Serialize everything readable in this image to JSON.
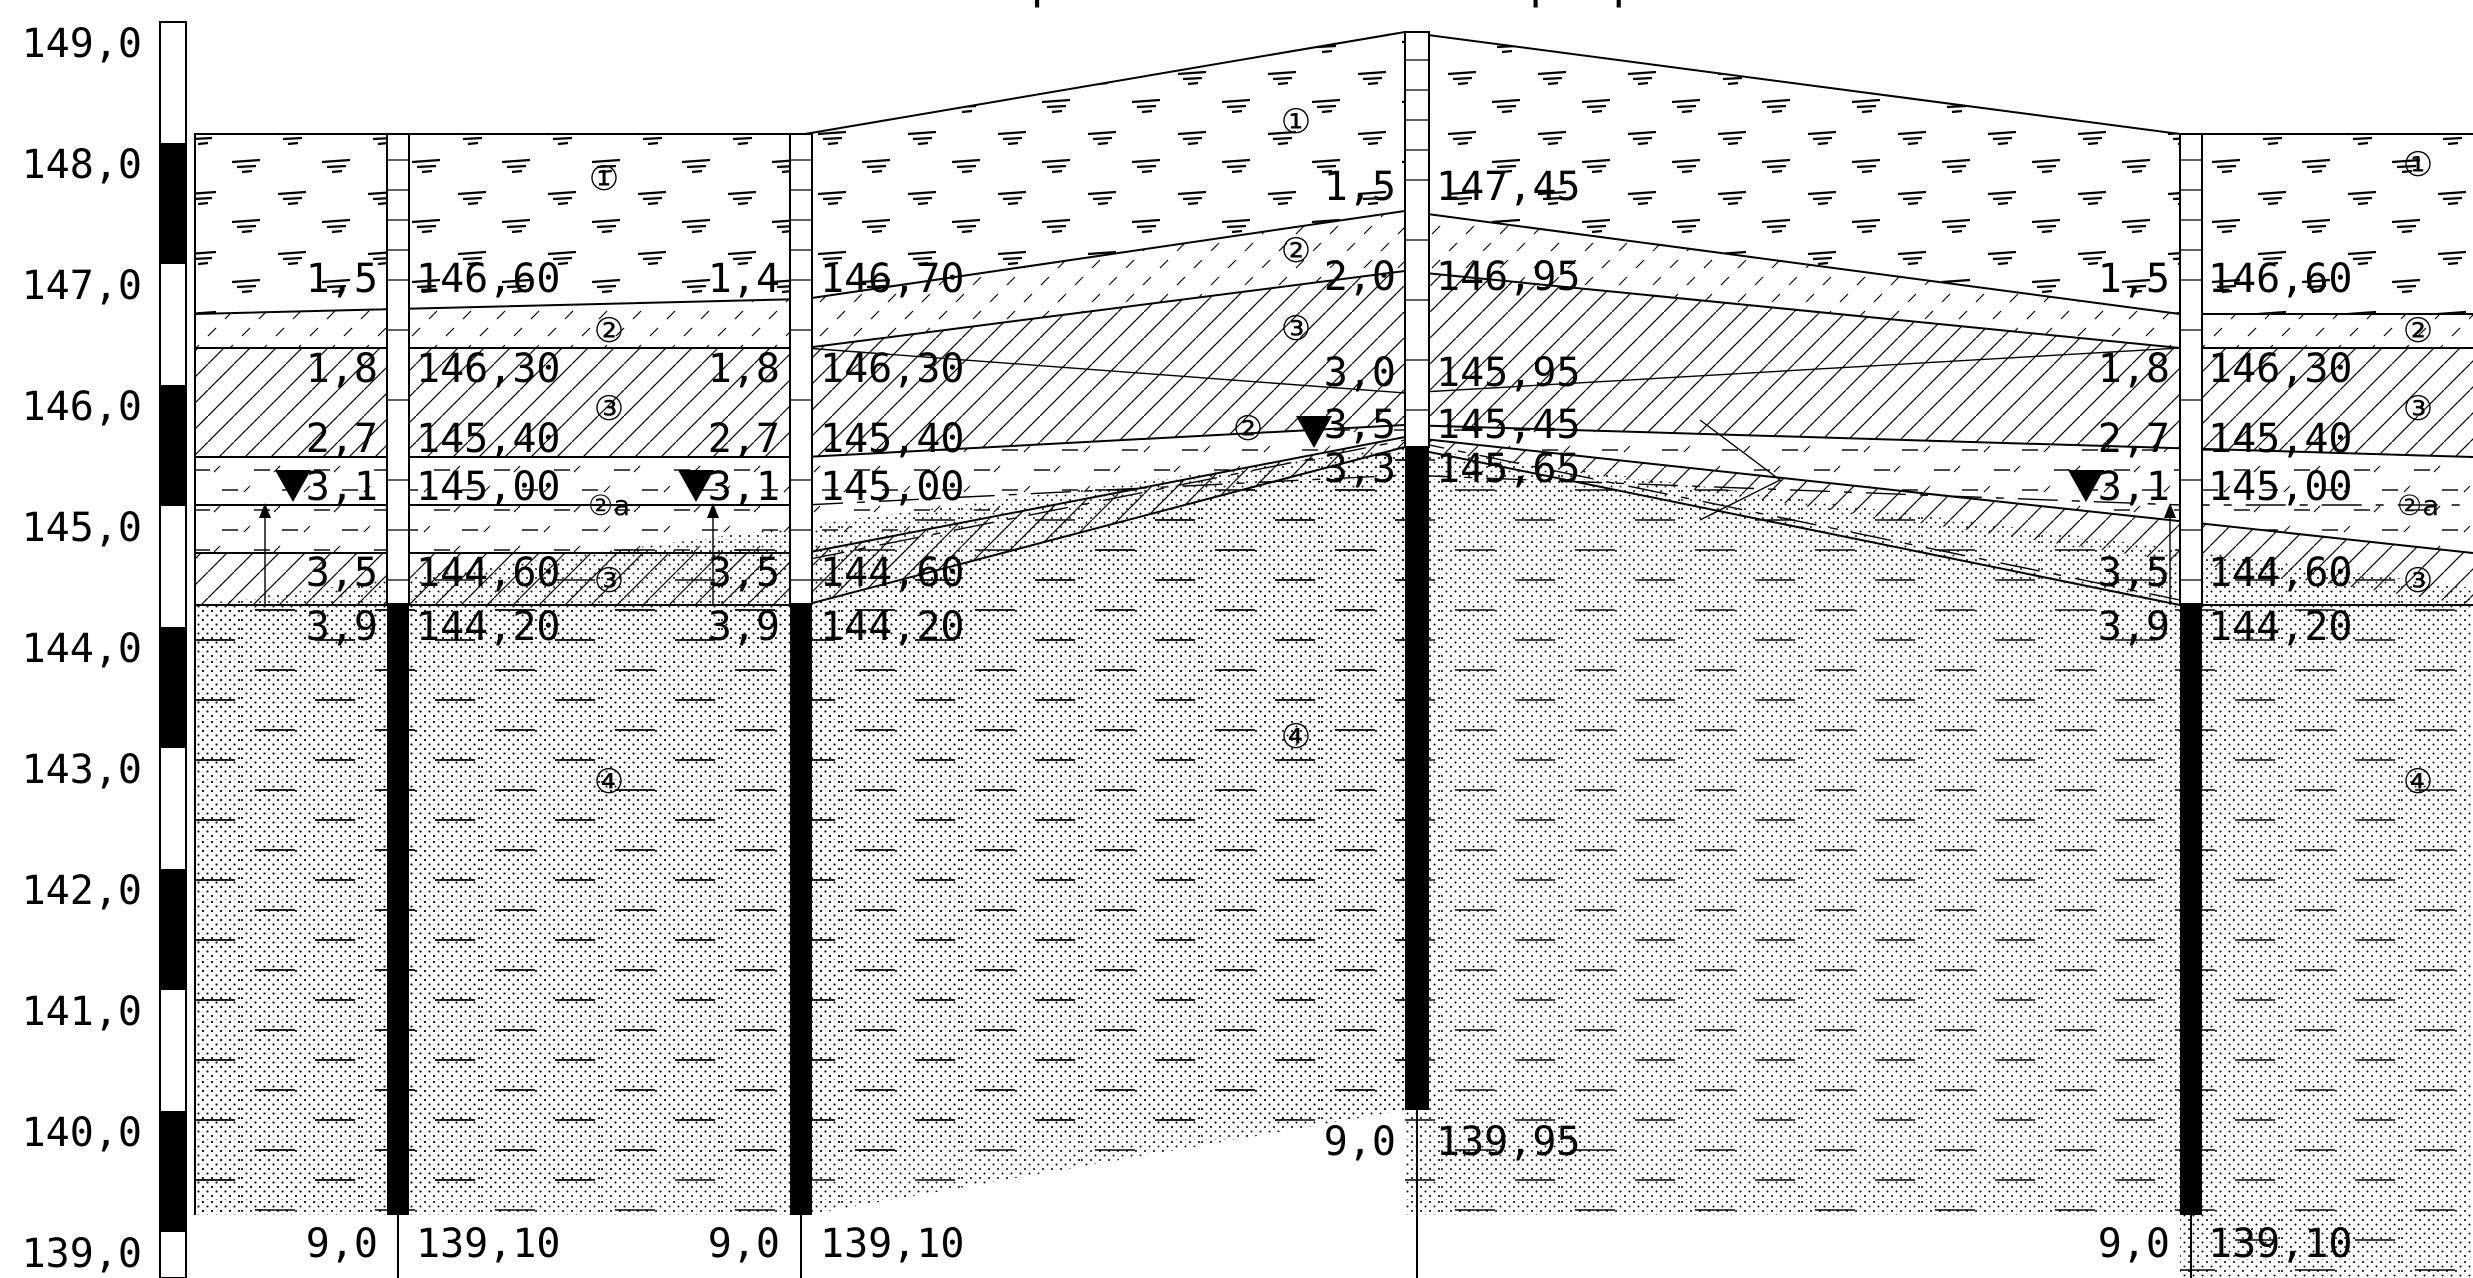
{
  "title": "Инженерно-геологический разрез",
  "scale": {
    "labels": [
      "149,0",
      "148,0",
      "147,0",
      "146,0",
      "145,0",
      "144,0",
      "143,0",
      "142,0",
      "141,0",
      "140,0",
      "139,0"
    ],
    "from": 149.0,
    "to": 139.0
  },
  "surface_labels": {
    "topsoil_1": "①",
    "loam_2": "②",
    "clay_3": "③",
    "sand_2a": "②а",
    "sand_4": "④"
  },
  "boreholes": [
    {
      "id": "bh-1",
      "rows": [
        {
          "depth": "1,5",
          "elev": "146,60"
        },
        {
          "depth": "1,8",
          "elev": "146,30"
        },
        {
          "depth": "2,7",
          "elev": "145,40"
        },
        {
          "depth": "3,1",
          "elev": "145,00"
        },
        {
          "depth": "3,5",
          "elev": "144,60"
        },
        {
          "depth": "3,9",
          "elev": "144,20"
        }
      ],
      "bottom": {
        "depth": "9,0",
        "elev": "139,10"
      }
    },
    {
      "id": "bh-2",
      "rows": [
        {
          "depth": "1,4",
          "elev": "146,70"
        },
        {
          "depth": "1,8",
          "elev": "146,30"
        },
        {
          "depth": "2,7",
          "elev": "145,40"
        },
        {
          "depth": "3,1",
          "elev": "145,00"
        },
        {
          "depth": "3,5",
          "elev": "144,60"
        },
        {
          "depth": "3,9",
          "elev": "144,20"
        }
      ],
      "bottom": {
        "depth": "9,0",
        "elev": "139,10"
      }
    },
    {
      "id": "bh-3",
      "rows": [
        {
          "depth": "1,5",
          "elev": "147,45"
        },
        {
          "depth": "2,0",
          "elev": "146,95"
        },
        {
          "depth": "3,0",
          "elev": "145,95"
        },
        {
          "depth": "3,5",
          "elev": "145,45"
        },
        {
          "depth": "3,3",
          "elev": "145,65"
        }
      ],
      "bottom": {
        "depth": "9,0",
        "elev": "139,95"
      }
    },
    {
      "id": "bh-4",
      "rows": [
        {
          "depth": "1,5",
          "elev": "146,60"
        },
        {
          "depth": "1,8",
          "elev": "146,30"
        },
        {
          "depth": "2,7",
          "elev": "145,40"
        },
        {
          "depth": "3,1",
          "elev": "145,00"
        },
        {
          "depth": "3,5",
          "elev": "144,60"
        },
        {
          "depth": "3,9",
          "elev": "144,20"
        }
      ],
      "bottom": {
        "depth": "9,0",
        "elev": "139,10"
      }
    }
  ]
}
